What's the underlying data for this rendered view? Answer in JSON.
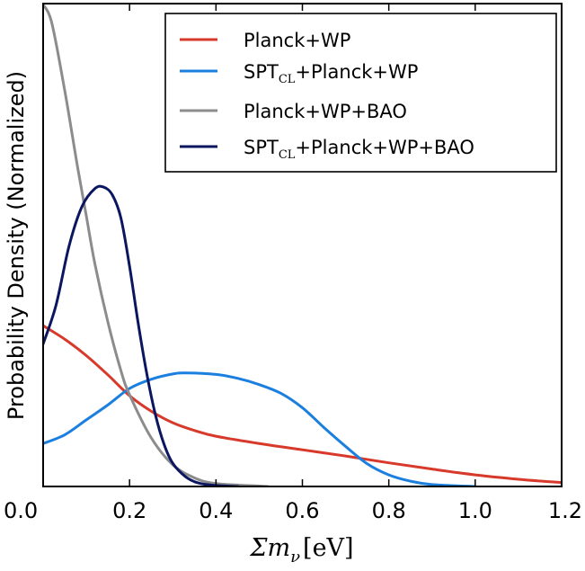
{
  "chart_data": {
    "type": "line",
    "xlabel_main": "Σm",
    "xlabel_sub": "ν",
    "xlabel_unit": "[eV]",
    "ylabel": "Probability Density (Normalized)",
    "xlim": [
      0.0,
      1.2
    ],
    "ylim": [
      0.0,
      1.0
    ],
    "x_ticks": [
      "0.0",
      "0.2",
      "0.4",
      "0.6",
      "0.8",
      "1.0",
      "1.2"
    ],
    "y_ticks_shown": false,
    "grid": false,
    "legend_position": "top-right",
    "series": [
      {
        "name": "Planck+WP",
        "legend_parts": [
          "Planck+WP"
        ],
        "color": "#d7392a",
        "points": [
          [
            0.0,
            0.333
          ],
          [
            0.05,
            0.305
          ],
          [
            0.1,
            0.271
          ],
          [
            0.15,
            0.231
          ],
          [
            0.2,
            0.188
          ],
          [
            0.25,
            0.156
          ],
          [
            0.3,
            0.132
          ],
          [
            0.35,
            0.116
          ],
          [
            0.4,
            0.104
          ],
          [
            0.5,
            0.089
          ],
          [
            0.6,
            0.076
          ],
          [
            0.7,
            0.063
          ],
          [
            0.8,
            0.049
          ],
          [
            0.9,
            0.036
          ],
          [
            1.0,
            0.024
          ],
          [
            1.1,
            0.015
          ],
          [
            1.2,
            0.008
          ]
        ]
      },
      {
        "name": "SPTCL+Planck+WP",
        "legend_parts": [
          "SPT",
          "CL",
          "+Planck+WP"
        ],
        "color": "#1b7fe0",
        "points": [
          [
            0.0,
            0.089
          ],
          [
            0.05,
            0.107
          ],
          [
            0.1,
            0.138
          ],
          [
            0.15,
            0.169
          ],
          [
            0.2,
            0.203
          ],
          [
            0.25,
            0.222
          ],
          [
            0.3,
            0.233
          ],
          [
            0.33,
            0.235
          ],
          [
            0.4,
            0.232
          ],
          [
            0.45,
            0.224
          ],
          [
            0.5,
            0.211
          ],
          [
            0.55,
            0.193
          ],
          [
            0.6,
            0.163
          ],
          [
            0.65,
            0.122
          ],
          [
            0.7,
            0.083
          ],
          [
            0.75,
            0.047
          ],
          [
            0.8,
            0.024
          ],
          [
            0.85,
            0.011
          ],
          [
            0.9,
            0.004
          ],
          [
            1.0,
            0.0
          ]
        ]
      },
      {
        "name": "Planck+WP+BAO",
        "legend_parts": [
          "Planck+WP+BAO"
        ],
        "color": "#8c8c8c",
        "points": [
          [
            0.0,
            0.998
          ],
          [
            0.02,
            0.96
          ],
          [
            0.05,
            0.82
          ],
          [
            0.08,
            0.66
          ],
          [
            0.1,
            0.56
          ],
          [
            0.12,
            0.46
          ],
          [
            0.15,
            0.34
          ],
          [
            0.18,
            0.24
          ],
          [
            0.2,
            0.19
          ],
          [
            0.25,
            0.101
          ],
          [
            0.3,
            0.045
          ],
          [
            0.35,
            0.018
          ],
          [
            0.4,
            0.006
          ],
          [
            0.5,
            0.001
          ],
          [
            0.52,
            0.0
          ]
        ]
      },
      {
        "name": "SPTCL+Planck+WP+BAO",
        "legend_parts": [
          "SPT",
          "CL",
          "+Planck+WP+BAO"
        ],
        "color": "#0b1660",
        "points": [
          [
            0.0,
            0.295
          ],
          [
            0.03,
            0.376
          ],
          [
            0.06,
            0.498
          ],
          [
            0.09,
            0.58
          ],
          [
            0.12,
            0.617
          ],
          [
            0.14,
            0.62
          ],
          [
            0.16,
            0.604
          ],
          [
            0.18,
            0.556
          ],
          [
            0.2,
            0.456
          ],
          [
            0.22,
            0.338
          ],
          [
            0.24,
            0.233
          ],
          [
            0.26,
            0.148
          ],
          [
            0.28,
            0.087
          ],
          [
            0.3,
            0.048
          ],
          [
            0.33,
            0.02
          ],
          [
            0.36,
            0.007
          ],
          [
            0.4,
            0.002
          ],
          [
            0.45,
            0.0
          ]
        ]
      }
    ]
  }
}
